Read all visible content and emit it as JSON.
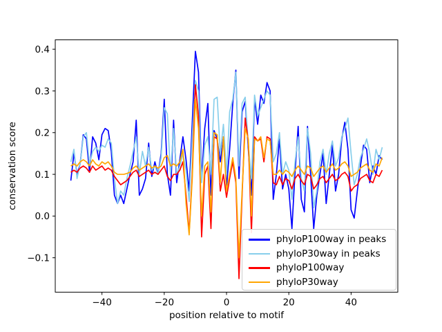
{
  "figure": {
    "background": "#ffffff",
    "plot_border_color": "#000000"
  },
  "axes": {
    "xlabel": "position relative to motif",
    "ylabel": "conservation score",
    "x_tick_values": [
      -40,
      -20,
      0,
      20,
      40
    ],
    "x_tick_labels": [
      "−40",
      "−20",
      "0",
      "20",
      "40"
    ],
    "y_tick_values": [
      -0.1,
      0.0,
      0.1,
      0.2,
      0.3,
      0.4
    ],
    "y_tick_labels": [
      "−0.1",
      "0.0",
      "0.1",
      "0.2",
      "0.3",
      "0.4"
    ]
  },
  "legend": {
    "entries": [
      {
        "label": "phyloP100way in peaks",
        "color": "#0000ff"
      },
      {
        "label": "phyloP30way in peaks",
        "color": "#87ceeb"
      },
      {
        "label": "phyloP100way",
        "color": "#ff0000"
      },
      {
        "label": "phyloP30way",
        "color": "#ffa500"
      }
    ]
  },
  "chart_data": {
    "type": "line",
    "title": "",
    "xlabel": "position relative to motif",
    "ylabel": "conservation score",
    "xlim": [
      -55,
      55
    ],
    "ylim": [
      -0.1825,
      0.4225
    ],
    "grid": false,
    "legend_position": "lower right",
    "x": [
      -50,
      -49,
      -48,
      -47,
      -46,
      -45,
      -44,
      -43,
      -42,
      -41,
      -40,
      -39,
      -38,
      -37,
      -36,
      -35,
      -34,
      -33,
      -32,
      -31,
      -30,
      -29,
      -28,
      -27,
      -26,
      -25,
      -24,
      -23,
      -22,
      -21,
      -20,
      -19,
      -18,
      -17,
      -16,
      -15,
      -14,
      -13,
      -12,
      -11,
      -10,
      -9,
      -8,
      -7,
      -6,
      -5,
      -4,
      -3,
      -2,
      -1,
      0,
      1,
      2,
      3,
      4,
      5,
      6,
      7,
      8,
      9,
      10,
      11,
      12,
      13,
      14,
      15,
      16,
      17,
      18,
      19,
      20,
      21,
      22,
      23,
      24,
      25,
      26,
      27,
      28,
      29,
      30,
      31,
      32,
      33,
      34,
      35,
      36,
      37,
      38,
      39,
      40,
      41,
      42,
      43,
      44,
      45,
      46,
      47,
      48,
      49,
      50
    ],
    "series": [
      {
        "name": "phyloP100way in peaks",
        "color": "#0000ff",
        "values": [
          0.085,
          0.15,
          0.1,
          0.125,
          0.195,
          0.185,
          0.105,
          0.19,
          0.175,
          0.135,
          0.195,
          0.21,
          0.205,
          0.155,
          0.05,
          0.03,
          0.05,
          0.03,
          0.065,
          0.1,
          0.13,
          0.23,
          0.05,
          0.065,
          0.09,
          0.175,
          0.095,
          0.13,
          0.1,
          0.15,
          0.28,
          0.1,
          0.05,
          0.23,
          0.08,
          0.135,
          0.19,
          0.135,
          0.06,
          0.225,
          0.395,
          0.345,
          0.09,
          0.21,
          0.27,
          0.05,
          0.205,
          0.185,
          0.13,
          0.19,
          0.07,
          0.16,
          0.27,
          0.35,
          0.09,
          0.25,
          0.275,
          0.16,
          0.05,
          0.28,
          0.22,
          0.29,
          0.27,
          0.32,
          0.3,
          0.04,
          0.1,
          0.185,
          0.065,
          0.1,
          0.065,
          -0.03,
          0.105,
          0.215,
          0.04,
          0.01,
          0.215,
          0.1,
          -0.03,
          0.05,
          0.1,
          0.15,
          0.03,
          0.1,
          0.17,
          0.06,
          0.1,
          0.185,
          0.225,
          0.16,
          0.015,
          -0.005,
          0.06,
          0.12,
          0.17,
          0.16,
          0.08,
          0.12,
          0.1,
          0.145,
          0.135
        ]
      },
      {
        "name": "phyloP30way in peaks",
        "color": "#87ceeb",
        "values": [
          0.13,
          0.16,
          0.09,
          0.125,
          0.19,
          0.2,
          0.125,
          0.155,
          0.165,
          0.155,
          0.17,
          0.165,
          0.185,
          0.175,
          0.09,
          0.03,
          0.06,
          0.05,
          0.09,
          0.12,
          0.155,
          0.19,
          0.1,
          0.155,
          0.12,
          0.165,
          0.11,
          0.12,
          0.1,
          0.14,
          0.26,
          0.245,
          0.1,
          0.21,
          0.1,
          0.12,
          0.15,
          0.11,
          0.035,
          0.19,
          0.325,
          0.3,
          0.08,
          0.17,
          0.19,
          0.1,
          0.28,
          0.285,
          0.15,
          0.22,
          0.1,
          0.25,
          0.28,
          0.345,
          0.12,
          0.27,
          0.285,
          0.17,
          0.09,
          0.29,
          0.24,
          0.26,
          0.28,
          0.3,
          0.29,
          0.13,
          0.15,
          0.2,
          0.1,
          0.13,
          0.11,
          0.04,
          0.13,
          0.19,
          0.09,
          0.06,
          0.21,
          0.15,
          0.02,
          0.06,
          0.13,
          0.16,
          0.1,
          0.15,
          0.18,
          0.12,
          0.14,
          0.19,
          0.21,
          0.235,
          0.15,
          0.075,
          0.1,
          0.14,
          0.16,
          0.185,
          0.15,
          0.1,
          0.16,
          0.135,
          0.165
        ]
      },
      {
        "name": "phyloP100way",
        "color": "#ff0000",
        "values": [
          0.105,
          0.11,
          0.105,
          0.115,
          0.12,
          0.115,
          0.105,
          0.12,
          0.11,
          0.115,
          0.12,
          0.11,
          0.115,
          0.11,
          0.095,
          0.085,
          0.075,
          0.08,
          0.085,
          0.095,
          0.105,
          0.11,
          0.095,
          0.1,
          0.105,
          0.11,
          0.1,
          0.105,
          0.1,
          0.11,
          0.12,
          0.095,
          0.085,
          0.1,
          0.1,
          0.11,
          0.13,
          0.05,
          -0.04,
          0.1,
          0.315,
          0.24,
          -0.05,
          0.1,
          0.12,
          -0.03,
          0.19,
          0.185,
          0.06,
          0.1,
          0.045,
          0.09,
          0.13,
          0.08,
          -0.15,
          0.05,
          0.235,
          0.18,
          -0.04,
          0.19,
          0.18,
          0.185,
          0.13,
          0.19,
          0.185,
          0.08,
          0.075,
          0.095,
          0.075,
          0.09,
          0.085,
          0.065,
          0.09,
          0.1,
          0.085,
          0.075,
          0.1,
          0.095,
          0.065,
          0.075,
          0.09,
          0.095,
          0.08,
          0.09,
          0.1,
          0.085,
          0.09,
          0.1,
          0.105,
          0.095,
          0.06,
          0.07,
          0.075,
          0.09,
          0.095,
          0.1,
          0.085,
          0.08,
          0.1,
          0.095,
          0.11
        ]
      },
      {
        "name": "phyloP30way",
        "color": "#ffa500",
        "values": [
          0.12,
          0.125,
          0.12,
          0.13,
          0.135,
          0.13,
          0.12,
          0.135,
          0.125,
          0.12,
          0.13,
          0.125,
          0.13,
          0.12,
          0.105,
          0.1,
          0.1,
          0.1,
          0.102,
          0.105,
          0.115,
          0.12,
          0.11,
          0.115,
          0.12,
          0.125,
          0.115,
          0.12,
          0.115,
          0.12,
          0.14,
          0.145,
          0.12,
          0.125,
          0.12,
          0.13,
          0.16,
          0.03,
          -0.045,
          0.09,
          0.28,
          0.21,
          0,
          0.12,
          0.13,
          0.01,
          0.2,
          0.195,
          0.08,
          0.19,
          0.06,
          0.1,
          0.14,
          0.09,
          -0.1,
          0.06,
          0.21,
          0.185,
          0,
          0.185,
          0.18,
          0.19,
          0.14,
          0.185,
          0.18,
          0.1,
          0.1,
          0.11,
          0.1,
          0.11,
          0.105,
          0.095,
          0.11,
          0.12,
          0.11,
          0.1,
          0.12,
          0.115,
          0.095,
          0.105,
          0.115,
          0.12,
          0.105,
          0.115,
          0.125,
          0.11,
          0.115,
          0.125,
          0.13,
          0.12,
          0.095,
          0.1,
          0.105,
          0.115,
          0.12,
          0.125,
          0.11,
          0.105,
          0.125,
          0.12,
          0.14
        ]
      }
    ]
  }
}
